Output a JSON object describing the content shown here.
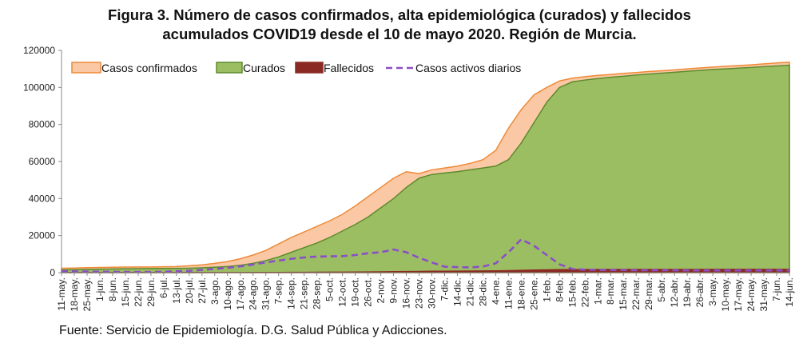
{
  "title_line1": "Figura 3. Número de casos confirmados, alta epidemiológica (curados) y fallecidos",
  "title_line2": "acumulados COVID19 desde el 10 de mayo 2020. Región de Murcia.",
  "source": "Fuente: Servicio de Epidemiología. D.G. Salud Pública y Adicciones.",
  "colors": {
    "confirmados_fill": "#fac8a4",
    "confirmados_line": "#ee8a38",
    "curados_fill": "#9cbe62",
    "curados_line": "#5e8a2e",
    "fallecidos_fill": "#8a2a22",
    "activos_line": "#8a4fc6"
  },
  "chart_data": {
    "type": "area",
    "title": "Figura 3. Número de casos confirmados, alta epidemiológica (curados) y fallecidos acumulados COVID19 desde el 10 de mayo 2020. Región de Murcia.",
    "xlabel": "",
    "ylabel": "",
    "ylim": [
      0,
      120000
    ],
    "yticks": [
      "0",
      "20000",
      "40000",
      "60000",
      "80000",
      "100000",
      "120000"
    ],
    "grid": false,
    "legend_position": "top-left",
    "x": [
      "11-may.",
      "18-may.",
      "25-may.",
      "1-jun.",
      "8-jun.",
      "15-jun.",
      "22-jun.",
      "29-jun.",
      "6-jul.",
      "13-jul.",
      "20-jul.",
      "27-jul.",
      "3-ago.",
      "10-ago.",
      "17-ago.",
      "24-ago.",
      "31-ago.",
      "7-sep.",
      "14-sep.",
      "21-sep.",
      "28-sep.",
      "5-oct.",
      "12-oct.",
      "19-oct.",
      "26-oct.",
      "2-nov.",
      "9-nov.",
      "16-nov.",
      "23-nov.",
      "30-nov.",
      "7-dic.",
      "14-dic.",
      "21-dic.",
      "28-dic.",
      "4-ene.",
      "11-ene.",
      "18-ene.",
      "25-ene.",
      "1-feb.",
      "8-feb.",
      "15-feb.",
      "22-feb.",
      "1-mar.",
      "8-mar.",
      "15-mar.",
      "22-mar.",
      "29-mar.",
      "5-abr.",
      "12-abr.",
      "19-abr.",
      "26-abr.",
      "3-may.",
      "10-may.",
      "17-may.",
      "24-may.",
      "31-may.",
      "7-jun.",
      "14-jun."
    ],
    "series": [
      {
        "name": "Casos confirmados",
        "kind": "area",
        "values": [
          2400,
          2500,
          2700,
          2800,
          2900,
          3000,
          3050,
          3100,
          3200,
          3300,
          3700,
          4200,
          5000,
          6000,
          7500,
          9500,
          12000,
          15500,
          19000,
          22000,
          25000,
          28000,
          31500,
          36000,
          41000,
          46000,
          51000,
          54500,
          53500,
          55500,
          56500,
          57500,
          59000,
          61000,
          66000,
          78000,
          88000,
          96000,
          100000,
          103500,
          105000,
          105800,
          106500,
          107000,
          107600,
          108000,
          108600,
          109000,
          109500,
          110000,
          110500,
          111000,
          111400,
          111800,
          112200,
          112700,
          113200,
          113600
        ]
      },
      {
        "name": "Curados",
        "kind": "area",
        "values": [
          1500,
          1600,
          1800,
          1900,
          2000,
          2100,
          2150,
          2200,
          2250,
          2300,
          2400,
          2600,
          2900,
          3300,
          4000,
          5000,
          6500,
          8500,
          11000,
          13500,
          16000,
          19000,
          22500,
          26000,
          30000,
          35000,
          40000,
          46000,
          51000,
          53000,
          53800,
          54500,
          55500,
          56500,
          57500,
          61000,
          70000,
          81000,
          92000,
          100000,
          103000,
          104000,
          104800,
          105500,
          106000,
          106700,
          107200,
          107700,
          108200,
          108700,
          109200,
          109700,
          110000,
          110400,
          110800,
          111200,
          111600,
          112000
        ]
      },
      {
        "name": "Fallecidos",
        "kind": "area",
        "values": [
          140,
          140,
          145,
          145,
          145,
          150,
          150,
          150,
          150,
          152,
          153,
          155,
          160,
          170,
          180,
          190,
          210,
          230,
          260,
          290,
          320,
          360,
          400,
          450,
          500,
          560,
          640,
          720,
          780,
          840,
          880,
          920,
          960,
          1020,
          1100,
          1200,
          1350,
          1500,
          1620,
          1700,
          1750,
          1780,
          1800,
          1810,
          1820,
          1830,
          1840,
          1845,
          1850,
          1855,
          1860,
          1865,
          1870,
          1875,
          1880,
          1885,
          1890,
          1895
        ]
      },
      {
        "name": "Casos activos diarios",
        "kind": "line",
        "dashed": true,
        "values": [
          800,
          700,
          600,
          500,
          450,
          400,
          350,
          350,
          500,
          800,
          1000,
          1500,
          2000,
          2600,
          3400,
          4400,
          5500,
          6500,
          7500,
          8200,
          8700,
          8800,
          8900,
          9500,
          10500,
          11000,
          12500,
          11000,
          8000,
          5500,
          3200,
          3000,
          2800,
          3300,
          5000,
          11000,
          18000,
          14500,
          9500,
          4500,
          2000,
          1600,
          1500,
          1400,
          1400,
          1300,
          1300,
          1300,
          1300,
          1200,
          1200,
          1200,
          1200,
          1200,
          1200,
          1200,
          1200,
          1200
        ]
      }
    ]
  }
}
